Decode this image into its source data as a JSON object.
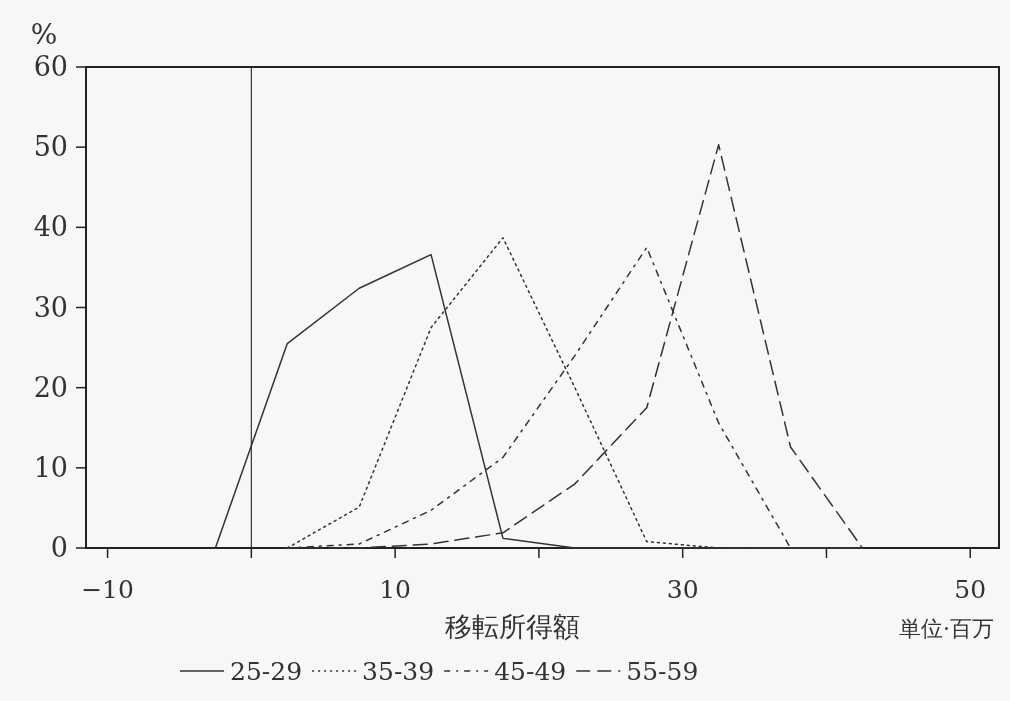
{
  "chart_data": {
    "type": "line",
    "xlabel": "移転所得額",
    "ylabel": "%",
    "annotations": [
      "単位·百万"
    ],
    "xlim": [
      -11.5,
      52
    ],
    "xticks": [
      -10,
      {
        "value": 0,
        "label": null
      },
      10,
      {
        "value": 20,
        "label": null
      },
      30,
      {
        "value": 40,
        "label": null
      },
      50
    ],
    "ylim": [
      0,
      60
    ],
    "yticks": [
      0,
      10,
      20,
      30,
      40,
      50,
      60
    ],
    "x": [
      -2.5,
      2.5,
      7.5,
      12.5,
      17.5,
      22.5,
      27.5,
      32.5,
      37.5,
      42.5
    ],
    "ref_lines": [
      {
        "axis": "x",
        "value": 0,
        "color": "#333333",
        "line_style": "solid"
      }
    ],
    "legend": "bottom",
    "grid": false,
    "marker": "none",
    "series": [
      {
        "name": "25-29",
        "color": "#333333",
        "line_style": "solid",
        "values": [
          0,
          25.5,
          32.4,
          36.6,
          1.2,
          0,
          0,
          0,
          0,
          0
        ]
      },
      {
        "name": "35-39",
        "color": "#333333",
        "line_style": "dotted",
        "values": [
          null,
          0,
          5.1,
          27.5,
          38.7,
          20,
          0.8,
          0,
          0,
          0
        ]
      },
      {
        "name": "45-49",
        "color": "#333333",
        "line_style": "dashdot",
        "values": [
          null,
          0,
          0.5,
          4.7,
          11.3,
          24,
          37.5,
          15.6,
          0,
          0
        ]
      },
      {
        "name": "55-59",
        "color": "#333333",
        "line_style": "dashed",
        "values": [
          null,
          0,
          0,
          0.5,
          1.9,
          8,
          17.5,
          50.3,
          12.6,
          0
        ]
      }
    ]
  }
}
